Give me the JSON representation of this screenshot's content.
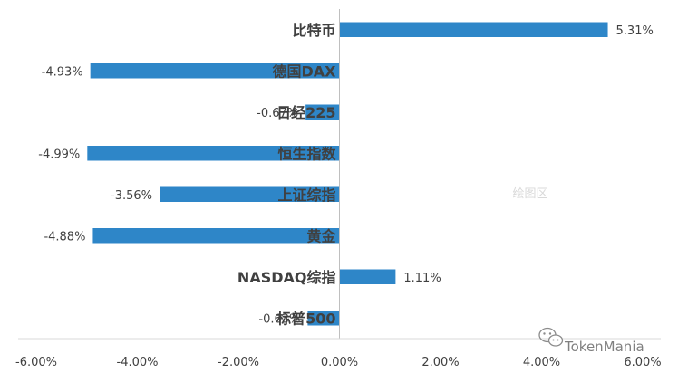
{
  "chart_data": {
    "type": "bar",
    "orientation": "horizontal",
    "categories": [
      "比特币",
      "德国DAX",
      "日经225",
      "恒生指数",
      "上证综指",
      "黄金",
      "NASDAQ综指",
      "标普500"
    ],
    "values": [
      5.31,
      -4.93,
      -0.67,
      -4.99,
      -3.56,
      -4.88,
      1.11,
      -0.63
    ],
    "value_labels": [
      "5.31%",
      "-4.93%",
      "-0.67%",
      "-4.99%",
      "-3.56%",
      "-4.88%",
      "1.11%",
      "-0.63%"
    ],
    "xlim": [
      -6,
      6
    ],
    "xticks": [
      -6,
      -4,
      -2,
      0,
      2,
      4,
      6
    ],
    "xtick_labels": [
      "-6.00%",
      "-4.00%",
      "-2.00%",
      "0.00%",
      "2.00%",
      "4.00%",
      "6.00%"
    ],
    "bar_color": "#2e86c8",
    "grid": false,
    "legend": "none"
  },
  "plot_area_hint": "绘图区",
  "watermark": {
    "text": "TokenMania",
    "icon": "wechat-icon"
  }
}
